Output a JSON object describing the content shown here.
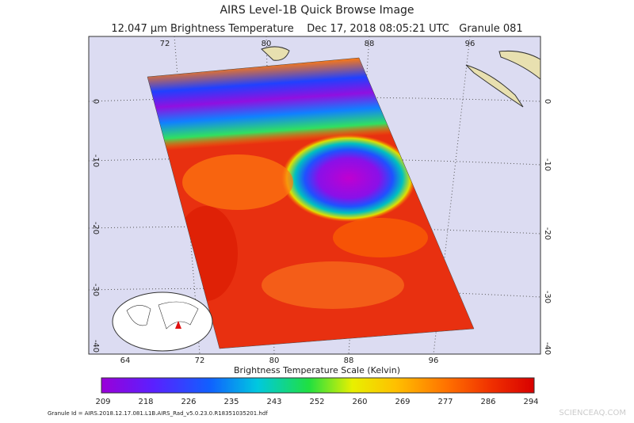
{
  "header": {
    "title": "AIRS Level-1B Quick Browse Image",
    "subtitle": "12.047 μm Brightness Temperature    Dec 17, 2018 08:05:21 UTC   Granule 081"
  },
  "map": {
    "top_lon_labels": [
      "72",
      "80",
      "88",
      "96"
    ],
    "bottom_lon_labels": [
      "64",
      "72",
      "80",
      "88",
      "96"
    ],
    "left_lat_labels": [
      "0",
      "-10",
      "-20",
      "-30",
      "-40"
    ],
    "right_lat_labels": [
      "0",
      "-10",
      "-20",
      "-30",
      "-40"
    ]
  },
  "colorbar": {
    "title": "Brightness Temperature Scale (Kelvin)",
    "tick_labels": [
      "209",
      "218",
      "226",
      "235",
      "243",
      "252",
      "260",
      "269",
      "277",
      "286",
      "294"
    ]
  },
  "footer": {
    "granule_id": "Granule Id = AIRS.2018.12.17.081.L1B.AIRS_Rad_v5.0.23.0.R18351035201.hdf",
    "watermark": "SCIENCEAQ.COM"
  }
}
